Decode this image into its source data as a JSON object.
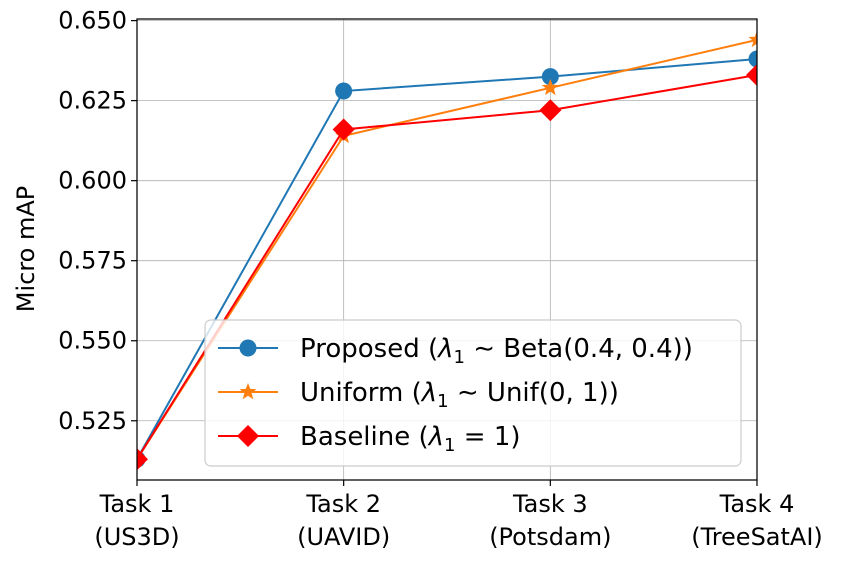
{
  "chart_data": {
    "type": "line",
    "title": "",
    "xlabel": "",
    "ylabel": "Micro mAP",
    "categories": [
      [
        "Task 1",
        "(US3D)"
      ],
      [
        "Task 2",
        "(UAVID)"
      ],
      [
        "Task 3",
        "(Potsdam)"
      ],
      [
        "Task 4",
        "(TreeSatAI)"
      ]
    ],
    "ylim": [
      0.5065,
      0.6505
    ],
    "yticks": [
      0.525,
      0.55,
      0.575,
      0.6,
      0.625,
      0.65
    ],
    "ytick_labels": [
      "0.525",
      "0.550",
      "0.575",
      "0.600",
      "0.625",
      "0.650"
    ],
    "grid": true,
    "legend_position": "lower-right",
    "series": [
      {
        "name": "Proposed (λ₁ ~ Beta(0.4, 0.4))",
        "legend_prefix": "Proposed (",
        "legend_math": "λ",
        "legend_sub": "1",
        "legend_rest": " ∼ Beta(0.4, 0.4))",
        "color": "#1f77b4",
        "marker": "circle",
        "values": [
          0.513,
          0.628,
          0.6325,
          0.638
        ]
      },
      {
        "name": "Uniform (λ₁ ~ Unif(0, 1))",
        "legend_prefix": "Uniform (",
        "legend_math": "λ",
        "legend_sub": "1",
        "legend_rest": " ∼ Unif(0, 1))",
        "color": "#ff7f0e",
        "marker": "star",
        "values": [
          0.513,
          0.614,
          0.629,
          0.644
        ]
      },
      {
        "name": "Baseline (λ₁ = 1)",
        "legend_prefix": "Baseline (",
        "legend_math": "λ",
        "legend_sub": "1",
        "legend_rest": " = 1)",
        "color": "#ff0000",
        "marker": "diamond",
        "values": [
          0.513,
          0.616,
          0.622,
          0.633
        ]
      }
    ]
  }
}
